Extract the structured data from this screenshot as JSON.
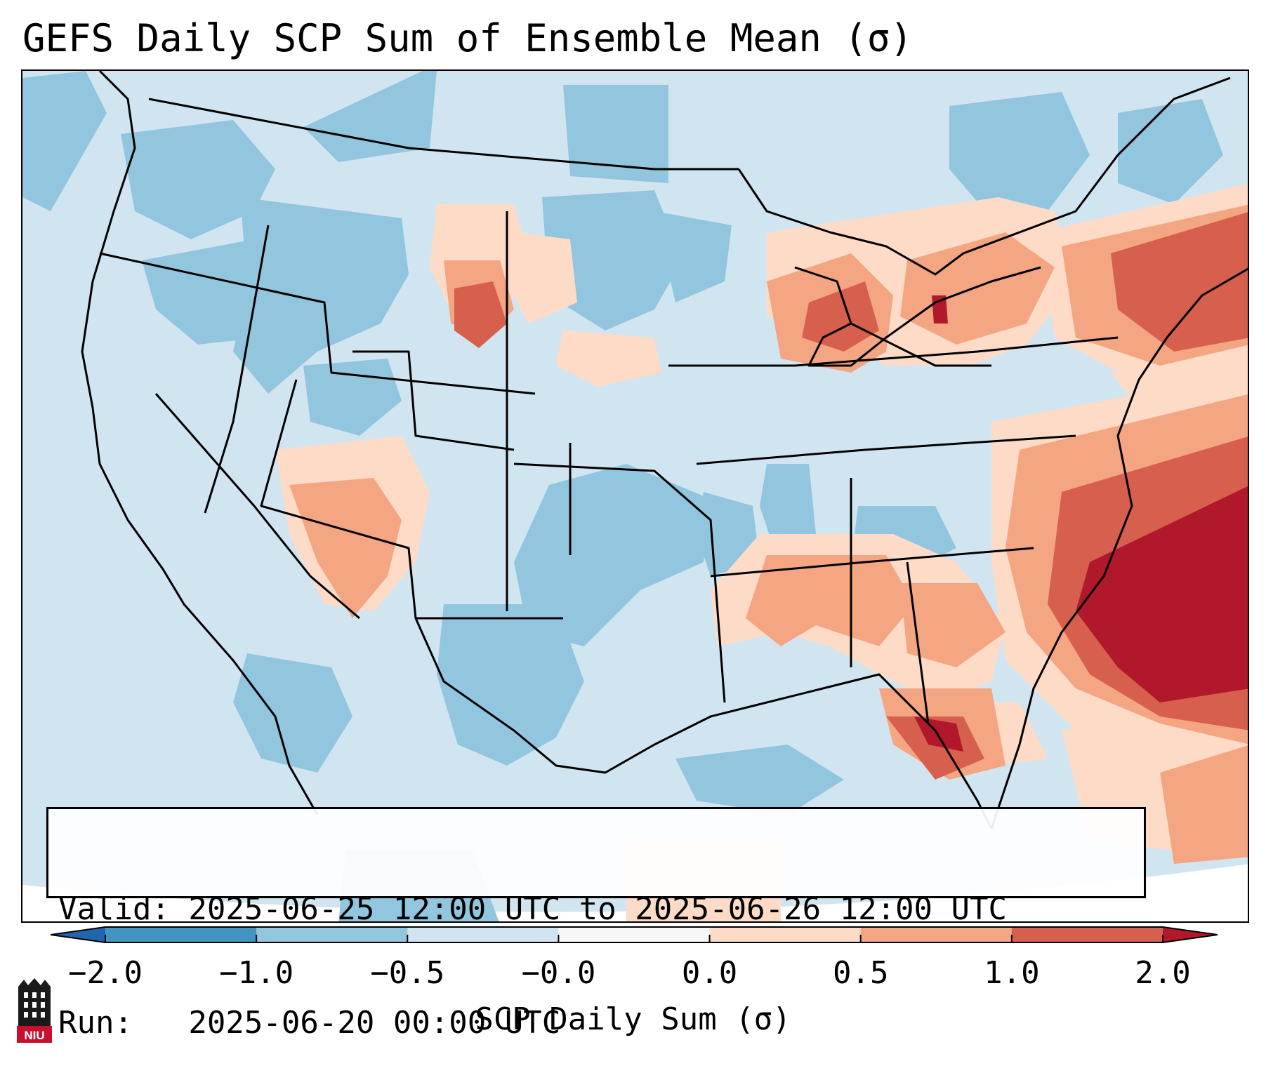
{
  "title": "GEFS Daily SCP Sum of Ensemble Mean (σ)",
  "info": {
    "valid_line": "Valid: 2025-06-25 12:00 UTC to 2025-06-26 12:00 UTC",
    "run_line": "Run:   2025-06-20 00:00 UTC"
  },
  "colorbar": {
    "label": "SCP Daily Sum (σ)",
    "ticks": [
      "−2.0",
      "−1.0",
      "−0.5",
      "−0.0",
      "0.0",
      "0.5",
      "1.0",
      "2.0"
    ],
    "bins": [
      {
        "range": "<-2.0",
        "color": "#2166ac"
      },
      {
        "range": "-2.0 to -1.0",
        "color": "#4393c3"
      },
      {
        "range": "-1.0 to -0.5",
        "color": "#92c5de"
      },
      {
        "range": "-0.5 to -0.0",
        "color": "#d1e5f0"
      },
      {
        "range": "-0.0 to 0.0",
        "color": "#f7f7f7"
      },
      {
        "range": "0.0 to 0.5",
        "color": "#fddbc7"
      },
      {
        "range": "0.5 to 1.0",
        "color": "#f4a582"
      },
      {
        "range": "1.0 to 2.0",
        "color": "#d6604d"
      },
      {
        "range": ">2.0",
        "color": "#b2182b"
      }
    ]
  },
  "logo": {
    "text": "NIU",
    "icon": "niu-castle-logo"
  }
}
